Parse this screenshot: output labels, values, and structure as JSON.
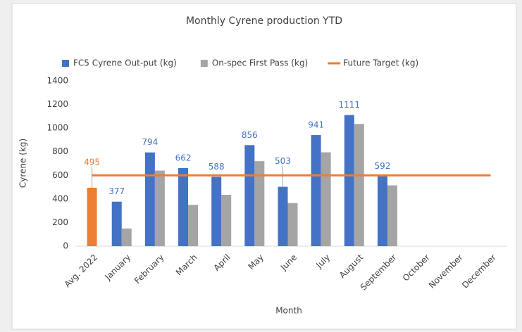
{
  "chart_data": {
    "type": "bar",
    "title": "Monthly Cyrene production YTD",
    "x_label": "Month",
    "y_label": "Cyrene (kg)",
    "categories": [
      "Avg. 2022",
      "January",
      "February",
      "March",
      "April",
      "May",
      "June",
      "July",
      "August",
      "September",
      "October",
      "November",
      "December"
    ],
    "series": [
      {
        "name": "FC5 Cyrene Out-put (kg)",
        "type": "bar",
        "color": "#4472c4",
        "point_colors": [
          "#ed7d31",
          "#4472c4",
          "#4472c4",
          "#4472c4",
          "#4472c4",
          "#4472c4",
          "#4472c4",
          "#4472c4",
          "#4472c4",
          "#4472c4",
          "#4472c4",
          "#4472c4",
          "#4472c4"
        ],
        "values": [
          495,
          377,
          794,
          662,
          588,
          856,
          503,
          941,
          1111,
          592,
          null,
          null,
          null
        ]
      },
      {
        "name": "On-spec First Pass (kg)",
        "type": "bar",
        "color": "#a5a5a5",
        "values": [
          null,
          150,
          640,
          350,
          435,
          720,
          365,
          795,
          1035,
          515,
          null,
          null,
          null
        ]
      },
      {
        "name": "Future Target (kg)",
        "type": "line",
        "color": "#ed7d31",
        "values": [
          600,
          600,
          600,
          600,
          600,
          600,
          600,
          600,
          600,
          600,
          600,
          600,
          600
        ]
      }
    ],
    "ylim": [
      0,
      1400
    ],
    "yticks": [
      0,
      200,
      400,
      600,
      800,
      1000,
      1200,
      1400
    ],
    "grid": false,
    "legend": "top"
  }
}
